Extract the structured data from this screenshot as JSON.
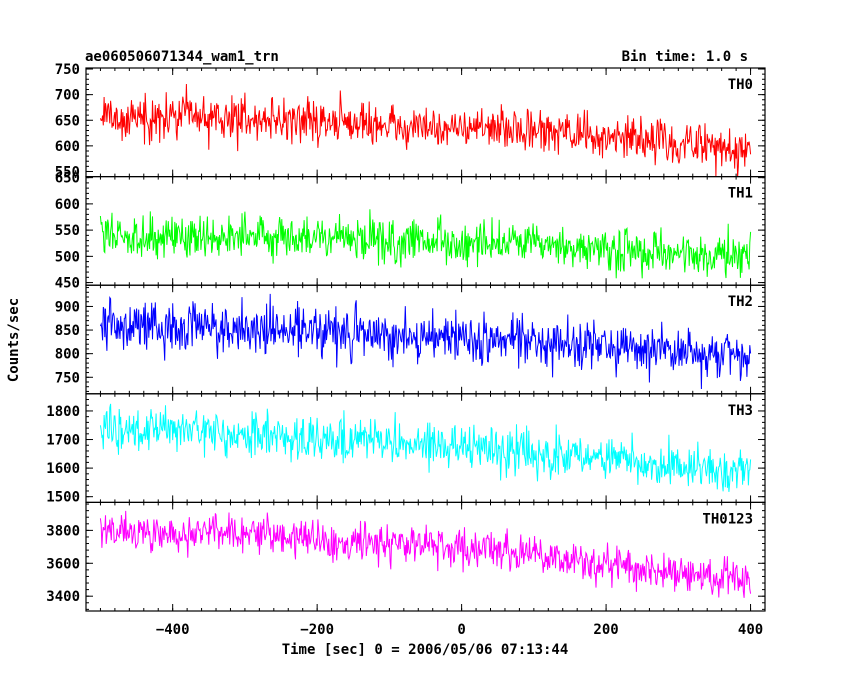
{
  "header": {
    "title": "ae060506071344_wam1_trn",
    "bin_time": "Bin time: 1.0 s"
  },
  "chart_data": {
    "type": "line",
    "title": "ae060506071344_wam1_trn",
    "xlabel": "Time [sec] 0 = 2006/05/06 07:13:44",
    "ylabel": "Counts/sec",
    "xlim": [
      -520,
      420
    ],
    "x_ticks": [
      -400,
      -200,
      0,
      200,
      400
    ],
    "x_range_data": [
      -500,
      400
    ],
    "bin_seconds": 1.0,
    "grid": false,
    "panels": [
      {
        "name": "TH0",
        "color": "#ff0000",
        "ylim": [
          540,
          752
        ],
        "y_ticks": [
          550,
          600,
          650,
          700,
          750
        ],
        "trend": [
          [
            -500,
            655
          ],
          [
            -300,
            655
          ],
          [
            -100,
            640
          ],
          [
            100,
            630
          ],
          [
            250,
            610
          ],
          [
            400,
            595
          ]
        ],
        "noise_amplitude": 38
      },
      {
        "name": "TH1",
        "color": "#00ff00",
        "ylim": [
          445,
          652
        ],
        "y_ticks": [
          450,
          500,
          550,
          600,
          650
        ],
        "trend": [
          [
            -500,
            540
          ],
          [
            -300,
            540
          ],
          [
            -100,
            530
          ],
          [
            100,
            520
          ],
          [
            250,
            505
          ],
          [
            400,
            500
          ]
        ],
        "noise_amplitude": 38
      },
      {
        "name": "TH2",
        "color": "#0000ff",
        "ylim": [
          715,
          945
        ],
        "y_ticks": [
          750,
          800,
          850,
          900
        ],
        "trend": [
          [
            -500,
            860
          ],
          [
            -300,
            855
          ],
          [
            -100,
            840
          ],
          [
            100,
            825
          ],
          [
            250,
            810
          ],
          [
            400,
            795
          ]
        ],
        "noise_amplitude": 48
      },
      {
        "name": "TH3",
        "color": "#00ffff",
        "ylim": [
          1480,
          1860
        ],
        "y_ticks": [
          1500,
          1600,
          1700,
          1800
        ],
        "trend": [
          [
            -500,
            1735
          ],
          [
            -300,
            1720
          ],
          [
            -100,
            1690
          ],
          [
            100,
            1650
          ],
          [
            250,
            1620
          ],
          [
            400,
            1595
          ]
        ],
        "noise_amplitude": 68
      },
      {
        "name": "TH0123",
        "color": "#ff00ff",
        "ylim": [
          3310,
          3970
        ],
        "y_ticks": [
          3400,
          3600,
          3800
        ],
        "trend": [
          [
            -500,
            3790
          ],
          [
            -300,
            3775
          ],
          [
            -100,
            3730
          ],
          [
            100,
            3650
          ],
          [
            250,
            3560
          ],
          [
            400,
            3500
          ]
        ],
        "noise_amplitude": 105
      }
    ]
  }
}
